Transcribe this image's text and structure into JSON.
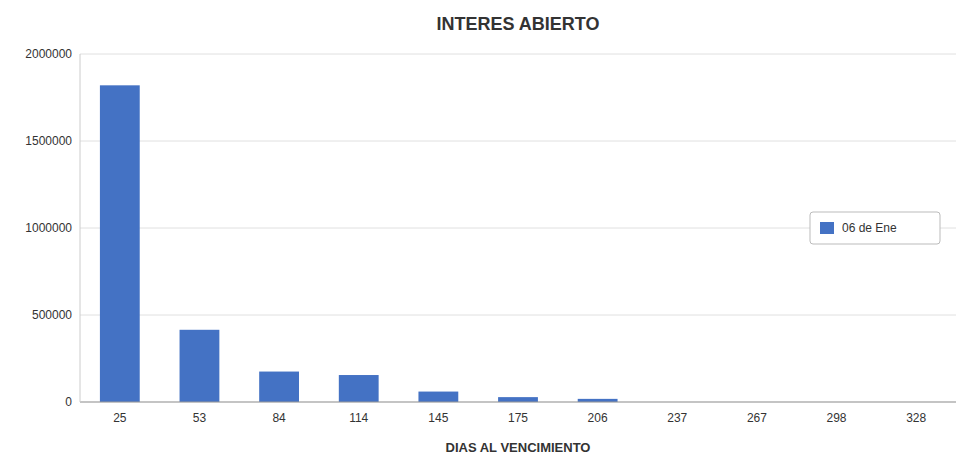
{
  "chart_data": {
    "type": "bar",
    "title": "INTERES ABIERTO",
    "xlabel": "DIAS AL VENCIMIENTO",
    "categories": [
      25,
      53,
      84,
      114,
      145,
      175,
      206,
      237,
      267,
      298,
      328
    ],
    "series": [
      {
        "name": "06 de Ene",
        "color": "#4472C4",
        "values": [
          1820000,
          415000,
          175000,
          155000,
          60000,
          28000,
          18000,
          0,
          0,
          0,
          0
        ]
      }
    ],
    "ylim": [
      0,
      2000000
    ],
    "yticks": [
      0,
      500000,
      1000000,
      1500000,
      2000000
    ],
    "grid": true,
    "legend": "right"
  }
}
